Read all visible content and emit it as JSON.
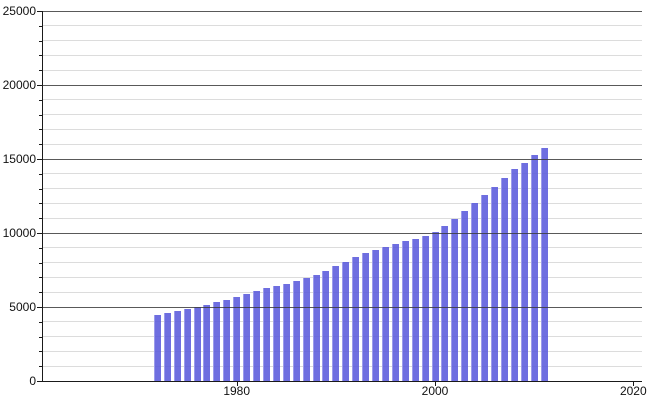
{
  "chart_data": {
    "type": "bar",
    "title": "",
    "xlabel": "",
    "ylabel": "",
    "x": [
      1972,
      1973,
      1974,
      1975,
      1976,
      1977,
      1978,
      1979,
      1980,
      1981,
      1982,
      1983,
      1984,
      1985,
      1986,
      1987,
      1988,
      1989,
      1990,
      1991,
      1992,
      1993,
      1994,
      1995,
      1996,
      1997,
      1998,
      1999,
      2000,
      2001,
      2002,
      2003,
      2004,
      2005,
      2006,
      2007,
      2008,
      2009,
      2010,
      2011
    ],
    "values": [
      4430,
      4590,
      4740,
      4880,
      4990,
      5140,
      5320,
      5480,
      5670,
      5870,
      6080,
      6270,
      6430,
      6580,
      6760,
      6950,
      7170,
      7440,
      7740,
      8070,
      8390,
      8620,
      8840,
      9070,
      9290,
      9430,
      9610,
      9830,
      10100,
      10500,
      10960,
      11500,
      12000,
      12560,
      13080,
      13700,
      14310,
      14760,
      15280,
      15770
    ],
    "ylim": [
      0,
      25000
    ],
    "xlim": [
      1960.5,
      2021
    ],
    "y_major_step": 5000,
    "y_minor_step": 1000,
    "y_tick_labels": [
      "0",
      "5000",
      "10000",
      "15000",
      "20000",
      "25000"
    ],
    "x_tick_labels": [
      "1980",
      "2000",
      "2020"
    ],
    "x_tick_years": [
      1980,
      2000,
      2020
    ],
    "grid": "horizontal-only, major dark + minor light, drawn over bars",
    "legend": "none",
    "colors": {
      "bar_fill": "#6e6ee1",
      "bar_fill_rgba": "rgba(90,90,220,0.88)",
      "bar_left_highlight": "#9b9bea",
      "major_grid": "#3c3c3c",
      "minor_grid": "#dcdcdc",
      "axis": "#1a1a1a",
      "tick_label": "#111111",
      "background": "#ffffff"
    }
  }
}
